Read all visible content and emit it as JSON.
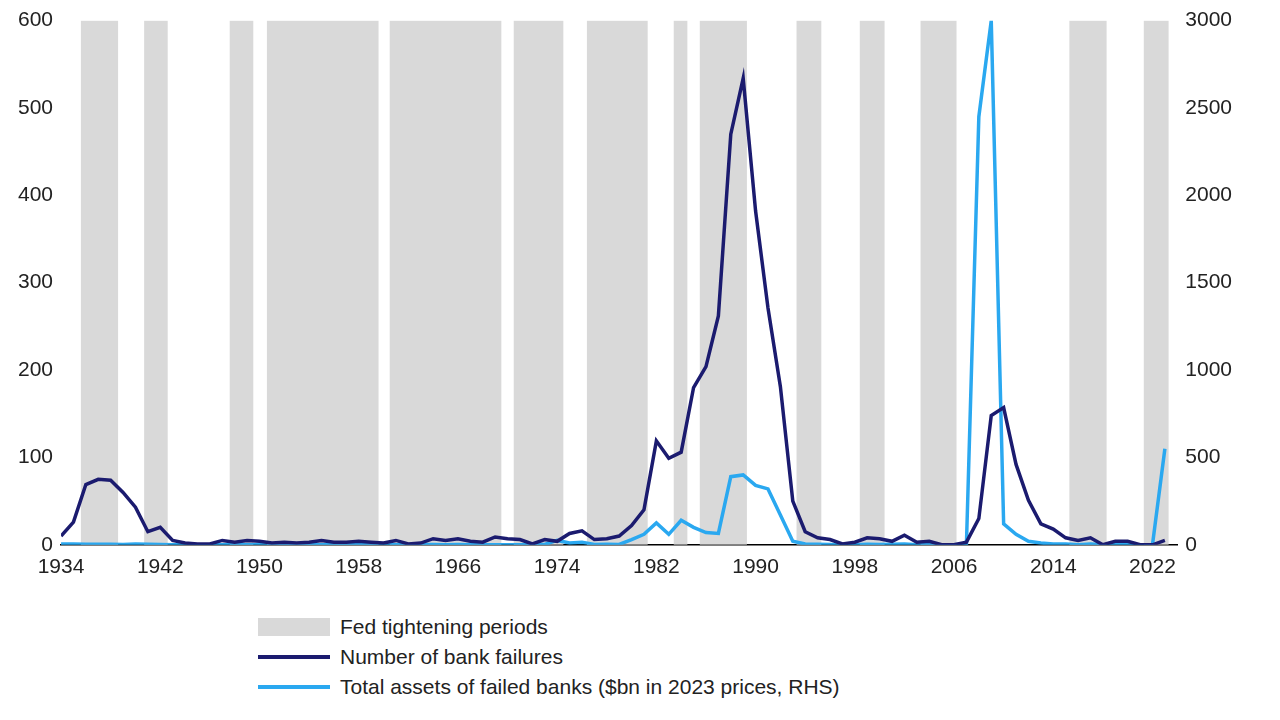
{
  "chart_data": {
    "type": "line",
    "x": [
      1934,
      1935,
      1936,
      1937,
      1938,
      1939,
      1940,
      1941,
      1942,
      1943,
      1944,
      1945,
      1946,
      1947,
      1948,
      1949,
      1950,
      1951,
      1952,
      1953,
      1954,
      1955,
      1956,
      1957,
      1958,
      1959,
      1960,
      1961,
      1962,
      1963,
      1964,
      1965,
      1966,
      1967,
      1968,
      1969,
      1970,
      1971,
      1972,
      1973,
      1974,
      1975,
      1976,
      1977,
      1978,
      1979,
      1980,
      1981,
      1982,
      1983,
      1984,
      1985,
      1986,
      1987,
      1988,
      1989,
      1990,
      1991,
      1992,
      1993,
      1994,
      1995,
      1996,
      1997,
      1998,
      1999,
      2000,
      2001,
      2002,
      2003,
      2004,
      2005,
      2006,
      2007,
      2008,
      2009,
      2010,
      2011,
      2012,
      2013,
      2014,
      2015,
      2016,
      2017,
      2018,
      2019,
      2020,
      2021,
      2022,
      2023
    ],
    "series": [
      {
        "name": "Fed tightening periods",
        "type": "band",
        "color": "#d9d9d9",
        "ranges": [
          [
            1935.6,
            1938.6
          ],
          [
            1940.7,
            1942.6
          ],
          [
            1947.6,
            1949.5
          ],
          [
            1950.6,
            1959.6
          ],
          [
            1960.5,
            1969.5
          ],
          [
            1970.5,
            1974.5
          ],
          [
            1976.4,
            1981.3
          ],
          [
            1983.4,
            1984.5
          ],
          [
            1985.5,
            1989.3
          ],
          [
            1993.3,
            1995.3
          ],
          [
            1998.4,
            2000.4
          ],
          [
            2003.3,
            2006.2
          ],
          [
            2015.3,
            2018.3
          ],
          [
            2021.3,
            2023.3
          ]
        ]
      },
      {
        "name": "Number of bank failures",
        "type": "line",
        "color": "#1b1b6f",
        "axis": "y",
        "values": [
          10,
          26,
          69,
          75,
          74,
          60,
          43,
          15,
          20,
          5,
          2,
          1,
          1,
          5,
          3,
          5,
          4,
          2,
          3,
          2,
          3,
          5,
          3,
          3,
          4,
          3,
          2,
          5,
          1,
          2,
          7,
          5,
          7,
          4,
          3,
          9,
          7,
          6,
          1,
          6,
          4,
          13,
          16,
          6,
          7,
          10,
          22,
          40,
          119,
          99,
          106,
          180,
          204,
          262,
          470,
          534,
          382,
          271,
          181,
          50,
          15,
          8,
          6,
          1,
          3,
          8,
          7,
          4,
          11,
          3,
          4,
          0,
          0,
          3,
          30,
          148,
          157,
          92,
          51,
          24,
          18,
          8,
          5,
          8,
          0,
          4,
          4,
          0,
          0,
          5
        ]
      },
      {
        "name": "Total assets of failed banks ($bn in 2023 prices, RHS)",
        "type": "line",
        "color": "#2aa8f0",
        "axis": "y2",
        "values": [
          5,
          5,
          3,
          3,
          3,
          2,
          5,
          3,
          2,
          1,
          1,
          0,
          0,
          1,
          0,
          1,
          0,
          0,
          0,
          0,
          0,
          1,
          0,
          0,
          0,
          0,
          0,
          1,
          0,
          2,
          2,
          1,
          2,
          1,
          0,
          1,
          1,
          1,
          2,
          2,
          25,
          10,
          15,
          2,
          3,
          2,
          30,
          60,
          125,
          60,
          140,
          100,
          70,
          65,
          390,
          400,
          340,
          320,
          170,
          20,
          5,
          3,
          2,
          1,
          1,
          3,
          2,
          3,
          5,
          1,
          0,
          0,
          0,
          5,
          2450,
          3000,
          120,
          60,
          20,
          10,
          5,
          5,
          1,
          5,
          0,
          1,
          1,
          0,
          0,
          550
        ]
      }
    ],
    "xlim": [
      1934,
      2024
    ],
    "xticks": [
      1934,
      1942,
      1950,
      1958,
      1966,
      1974,
      1982,
      1990,
      1998,
      2006,
      2014,
      2022
    ],
    "ylim": [
      0,
      600
    ],
    "yticks": [
      0,
      100,
      200,
      300,
      400,
      500,
      600
    ],
    "y2lim": [
      0,
      3000
    ],
    "y2ticks": [
      0,
      500,
      1000,
      1500,
      2000,
      2500,
      3000
    ],
    "grid": false,
    "legend": "bottom"
  }
}
